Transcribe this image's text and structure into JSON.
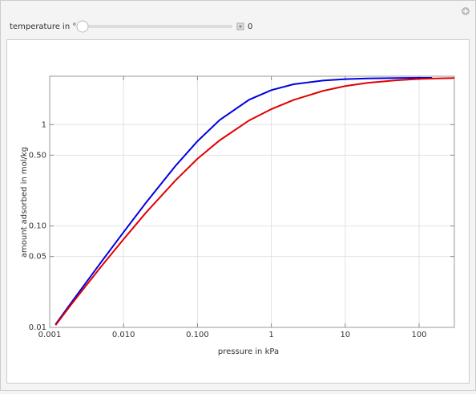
{
  "controls": {
    "slider_label": "temperature in °C",
    "slider_value": "0"
  },
  "chart_data": {
    "type": "line",
    "xlabel": "pressure in kPa",
    "ylabel": "amount adsorbed in mol/kg",
    "xscale": "log",
    "yscale": "log",
    "grid": true,
    "xlim": [
      0.001,
      300
    ],
    "ylim": [
      0.01,
      3
    ],
    "xticks": [
      0.001,
      {
        "value": 0.01,
        "label": "0.010"
      },
      {
        "value": 0.1,
        "label": "0.100"
      },
      1,
      10,
      100
    ],
    "yticks": [
      0.01,
      0.05,
      {
        "value": 0.1,
        "label": "0.10"
      },
      {
        "value": 0.5,
        "label": "0.50"
      },
      1
    ],
    "series": [
      {
        "color": "#0000e0",
        "x": [
          0.0012,
          0.002,
          0.005,
          0.01,
          0.02,
          0.05,
          0.1,
          0.2,
          0.5,
          1,
          2,
          5,
          10,
          20,
          50,
          100,
          150
        ],
        "values": [
          0.0107,
          0.0179,
          0.0443,
          0.087,
          0.169,
          0.389,
          0.686,
          1.11,
          1.76,
          2.19,
          2.5,
          2.72,
          2.81,
          2.85,
          2.88,
          2.89,
          2.89
        ]
      },
      {
        "color": "#e00000",
        "x": [
          0.0012,
          0.002,
          0.005,
          0.01,
          0.02,
          0.05,
          0.1,
          0.2,
          0.5,
          1,
          2,
          5,
          10,
          20,
          50,
          100,
          200,
          300
        ],
        "values": [
          0.0105,
          0.0172,
          0.04,
          0.074,
          0.135,
          0.28,
          0.46,
          0.7,
          1.1,
          1.42,
          1.75,
          2.15,
          2.4,
          2.58,
          2.74,
          2.82,
          2.86,
          2.88
        ]
      }
    ]
  }
}
